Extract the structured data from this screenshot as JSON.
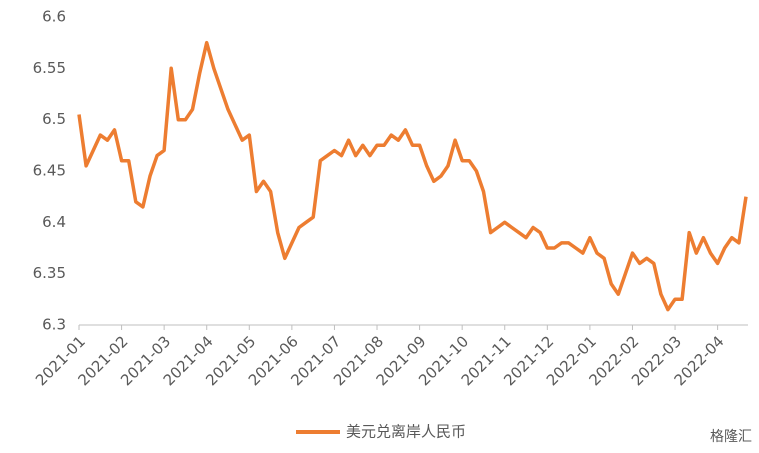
{
  "chart_data": {
    "type": "line",
    "categories": [
      "2021-01",
      null,
      null,
      null,
      null,
      null,
      "2021-02",
      null,
      null,
      null,
      null,
      null,
      "2021-03",
      null,
      null,
      null,
      null,
      null,
      "2021-04",
      null,
      null,
      null,
      null,
      null,
      "2021-05",
      null,
      null,
      null,
      null,
      null,
      "2021-06",
      null,
      null,
      null,
      null,
      null,
      "2021-07",
      null,
      null,
      null,
      null,
      null,
      "2021-08",
      null,
      null,
      null,
      null,
      null,
      "2021-09",
      null,
      null,
      null,
      null,
      null,
      "2021-10",
      null,
      null,
      null,
      null,
      null,
      "2021-11",
      null,
      null,
      null,
      null,
      null,
      "2021-12",
      null,
      null,
      null,
      null,
      null,
      "2022-01",
      null,
      null,
      null,
      null,
      null,
      "2022-02",
      null,
      null,
      null,
      null,
      null,
      "2022-03",
      null,
      null,
      null,
      null,
      null,
      "2022-04",
      null,
      null,
      null,
      null
    ],
    "series": [
      {
        "name": "美元兑离岸人民币",
        "color": "#ed7d31",
        "values": [
          6.505,
          6.455,
          6.47,
          6.485,
          6.48,
          6.49,
          6.46,
          6.46,
          6.42,
          6.415,
          6.445,
          6.465,
          6.47,
          6.55,
          6.5,
          6.5,
          6.51,
          6.545,
          6.575,
          6.55,
          6.53,
          6.51,
          6.495,
          6.48,
          6.485,
          6.43,
          6.44,
          6.43,
          6.39,
          6.365,
          6.38,
          6.395,
          6.4,
          6.405,
          6.46,
          6.465,
          6.47,
          6.465,
          6.48,
          6.465,
          6.475,
          6.465,
          6.475,
          6.475,
          6.485,
          6.48,
          6.49,
          6.475,
          6.475,
          6.455,
          6.44,
          6.445,
          6.455,
          6.48,
          6.46,
          6.46,
          6.45,
          6.43,
          6.39,
          6.395,
          6.4,
          6.395,
          6.39,
          6.385,
          6.395,
          6.39,
          6.375,
          6.375,
          6.38,
          6.38,
          6.375,
          6.37,
          6.385,
          6.37,
          6.365,
          6.34,
          6.33,
          6.35,
          6.37,
          6.36,
          6.365,
          6.36,
          6.33,
          6.315,
          6.325,
          6.325,
          6.39,
          6.37,
          6.385,
          6.37,
          6.36,
          6.375,
          6.385,
          6.38,
          6.425
        ]
      }
    ],
    "ylim": [
      6.3,
      6.6
    ],
    "yticks": [
      6.3,
      6.35,
      6.4,
      6.45,
      6.5,
      6.55,
      6.6
    ],
    "grid": false,
    "legend": "bottom",
    "watermark": "格隆汇"
  }
}
